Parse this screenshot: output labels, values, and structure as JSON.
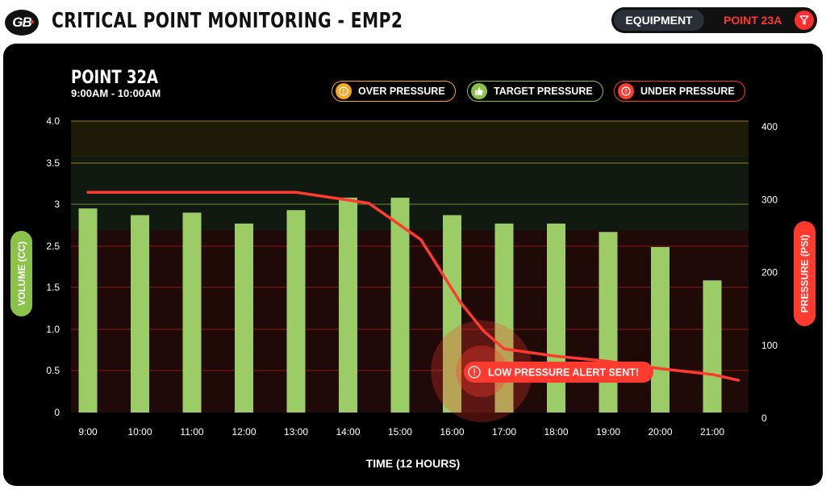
{
  "header": {
    "logo_text": "GB",
    "title": "CRITICAL POINT MONITORING - EMP2",
    "equipment_label": "EQUIPMENT",
    "point_selector": "POINT 23A",
    "filter_icon": "filter-icon"
  },
  "panel": {
    "point_title": "POINT 32A",
    "time_range": "9:00AM - 10:00AM"
  },
  "legend": [
    {
      "label": "OVER PRESSURE",
      "icon": "alert-icon",
      "color": "#f5a623"
    },
    {
      "label": "TARGET PRESSURE",
      "icon": "thumbs-up-icon",
      "color": "#8bc34a"
    },
    {
      "label": "UNDER PRESSURE",
      "icon": "alert-icon",
      "color": "#ff3b30"
    }
  ],
  "alert": {
    "label": "LOW PRESSURE ALERT SENT!",
    "icon": "alert-icon"
  },
  "chart_data": {
    "type": "bar",
    "categories": [
      "9:00",
      "10:00",
      "11:00",
      "12:00",
      "13:00",
      "14:00",
      "15:00",
      "16:00",
      "17:00",
      "18:00",
      "19:00",
      "20:00",
      "21:00"
    ],
    "series": [
      {
        "axis": "left",
        "type": "bar",
        "values": [
          2.95,
          2.87,
          2.9,
          2.77,
          2.93,
          3.08,
          3.08,
          2.87,
          2.77,
          2.77,
          2.67,
          2.48,
          1.67
        ],
        "color": "#9ccc65"
      },
      {
        "axis": "right",
        "type": "line",
        "x": [
          0,
          4,
          5.4,
          6.4,
          7.15,
          7.6,
          8.0,
          9.0,
          10.0,
          11.0,
          12.0,
          12.5
        ],
        "values": [
          310,
          310,
          295,
          245,
          160,
          120,
          95,
          85,
          78,
          68,
          60,
          52
        ],
        "color": "#ff3b30"
      }
    ],
    "left_axis": {
      "label": "VOLUME (CC)",
      "ticks": [
        "0",
        "0.5",
        "1.0",
        "1.5",
        "2.5",
        "3",
        "3.5",
        "4.0"
      ],
      "ylim": [
        0,
        4.0
      ]
    },
    "right_axis": {
      "label": "PRESSURE (PSI)",
      "ticks": [
        "0",
        "100",
        "200",
        "300",
        "400"
      ],
      "ylim": [
        0,
        400
      ]
    },
    "xlabel": "TIME (12 HOURS)",
    "bands": [
      {
        "name": "over",
        "from": 3.5,
        "to": 4.0,
        "fill": "#1e1a08",
        "line": "#a57a10"
      },
      {
        "name": "target",
        "from": 2.5,
        "to": 3.5,
        "fill": "#111a10",
        "line": "#6f8c2e"
      },
      {
        "name": "under",
        "from": 0,
        "to": 2.5,
        "fill": "#1f0a08",
        "line": "#8a1c14"
      }
    ],
    "grid": true,
    "annotation": {
      "x": 7.6,
      "y_right": 50,
      "text": "LOW PRESSURE ALERT SENT!"
    }
  }
}
